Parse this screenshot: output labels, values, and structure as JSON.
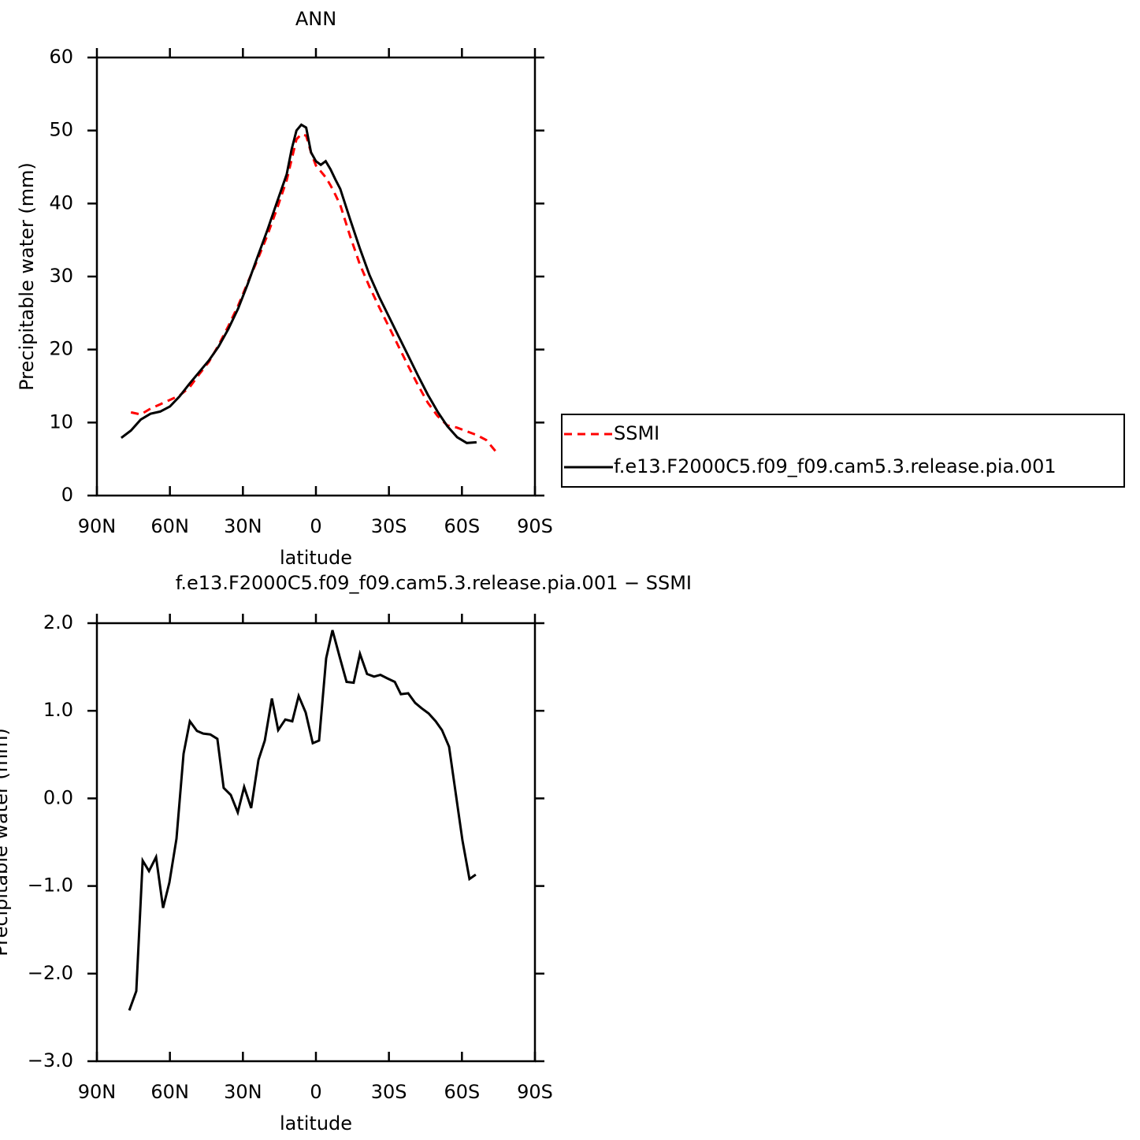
{
  "chart_data": [
    {
      "type": "line",
      "title": "ANN",
      "x_label": "latitude",
      "y_label": "Precipitable water (mm)",
      "x": [
        80,
        76,
        72,
        68,
        64,
        60,
        56,
        52,
        48,
        44,
        40,
        36,
        32,
        28,
        24,
        20,
        16,
        12,
        10,
        8,
        6,
        4,
        2,
        0,
        -2,
        -4,
        -6,
        -8,
        -10,
        -14,
        -18,
        -22,
        -26,
        -30,
        -34,
        -38,
        -42,
        -46,
        -50,
        -54,
        -58,
        -62,
        -66,
        -70,
        -74
      ],
      "series": [
        {
          "name": "SSMI",
          "color": "#ff0000",
          "dash": "dashed",
          "values": [
            null,
            11.4,
            11.1,
            11.9,
            12.5,
            13.1,
            13.7,
            14.8,
            16.6,
            18.3,
            20.6,
            23.2,
            26.0,
            29.2,
            32.3,
            35.6,
            39.3,
            43.2,
            46.0,
            48.8,
            49.5,
            49.3,
            47.0,
            45.2,
            44.4,
            43.6,
            42.5,
            41.2,
            39.8,
            35.6,
            31.7,
            28.6,
            25.8,
            23.1,
            20.4,
            17.7,
            15.1,
            12.7,
            10.9,
            9.6,
            9.3,
            8.8,
            8.3,
            7.6,
            6.0
          ]
        },
        {
          "name": "f.e13.F2000C5.f09_f09.cam5.3.release.pia.001",
          "color": "#000000",
          "dash": "solid",
          "values": [
            7.9,
            8.9,
            10.4,
            11.2,
            11.5,
            12.2,
            13.6,
            15.3,
            16.9,
            18.5,
            20.4,
            22.8,
            25.6,
            29.0,
            32.7,
            36.3,
            40.2,
            44.0,
            47.4,
            50.0,
            50.8,
            50.4,
            47.0,
            45.8,
            45.3,
            45.8,
            44.7,
            43.3,
            42.0,
            37.9,
            33.9,
            30.2,
            27.2,
            24.5,
            21.8,
            19.1,
            16.4,
            13.8,
            11.5,
            9.5,
            8.0,
            7.2,
            7.3,
            null,
            null
          ]
        }
      ],
      "xlim": [
        90,
        -90
      ],
      "xticks": [
        {
          "value": 90,
          "label": "90N"
        },
        {
          "value": 60,
          "label": "60N"
        },
        {
          "value": 30,
          "label": "30N"
        },
        0,
        {
          "value": -30,
          "label": "30S"
        },
        {
          "value": -60,
          "label": "60S"
        },
        {
          "value": -90,
          "label": "90S"
        }
      ],
      "ylim": [
        0,
        60
      ],
      "yticks": [
        0,
        10,
        20,
        30,
        40,
        50,
        60
      ],
      "legend": "right"
    },
    {
      "type": "line",
      "title": "f.e13.F2000C5.f09_f09.cam5.3.release.pia.001 − SSMI",
      "x_label": "latitude",
      "y_label": "Precipitable water (mm)",
      "x": [
        76.7,
        73.8,
        71.2,
        68.6,
        65.7,
        62.8,
        60.2,
        57.3,
        54.4,
        51.8,
        48.9,
        46.3,
        43.4,
        40.5,
        37.9,
        35.0,
        32.1,
        29.5,
        26.6,
        23.6,
        21.0,
        18.1,
        15.5,
        12.6,
        9.7,
        7.1,
        4.2,
        1.3,
        -1.3,
        -4.2,
        -6.8,
        -9.7,
        -12.6,
        -15.5,
        -18.1,
        -21.0,
        -23.9,
        -26.5,
        -29.4,
        -32.4,
        -34.9,
        -37.9,
        -40.8,
        -43.4,
        -46.3,
        -49.2,
        -51.8,
        -54.7,
        -57.6,
        -60.2,
        -63.1,
        -65.7
      ],
      "values": [
        -2.42,
        -2.2,
        -0.71,
        -0.83,
        -0.67,
        -1.25,
        -0.96,
        -0.46,
        0.51,
        0.88,
        0.77,
        0.74,
        0.73,
        0.68,
        0.12,
        0.04,
        -0.16,
        0.13,
        -0.11,
        0.44,
        0.66,
        1.14,
        0.78,
        0.9,
        0.88,
        1.17,
        0.98,
        0.63,
        0.66,
        1.6,
        1.92,
        1.62,
        1.33,
        1.32,
        1.65,
        1.42,
        1.39,
        1.41,
        1.37,
        1.33,
        1.19,
        1.2,
        1.09,
        1.03,
        0.97,
        0.88,
        0.78,
        0.59,
        0.03,
        -0.48,
        -0.92,
        -0.87
      ],
      "color": "#000000",
      "xlim": [
        90,
        -90
      ],
      "xticks": [
        {
          "value": 90,
          "label": "90N"
        },
        {
          "value": 60,
          "label": "60N"
        },
        {
          "value": 30,
          "label": "30N"
        },
        0,
        {
          "value": -30,
          "label": "30S"
        },
        {
          "value": -60,
          "label": "60S"
        },
        {
          "value": -90,
          "label": "90S"
        }
      ],
      "ylim": [
        -3,
        2
      ],
      "yticks": [
        {
          "value": 2,
          "label": "2.0"
        },
        {
          "value": 1,
          "label": "1.0"
        },
        {
          "value": 0,
          "label": "0.0"
        },
        {
          "value": -1,
          "label": "−1.0"
        },
        {
          "value": -2,
          "label": "−2.0"
        },
        {
          "value": -3,
          "label": "−3.0"
        }
      ]
    }
  ]
}
